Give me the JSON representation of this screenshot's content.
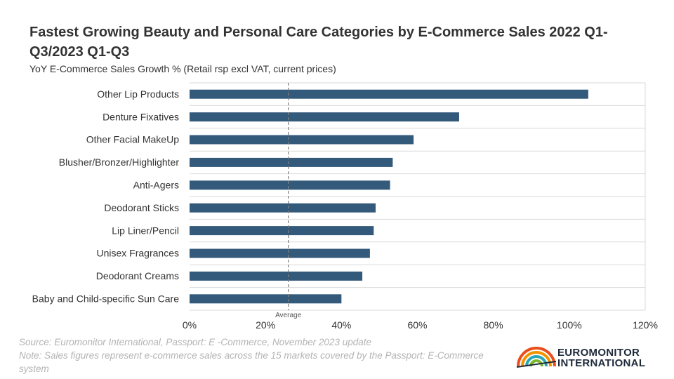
{
  "title": "Fastest Growing Beauty and Personal Care Categories by E-Commerce Sales 2022 Q1-Q3/2023 Q1-Q3",
  "subtitle": "YoY E-Commerce Sales Growth % (Retail rsp excl VAT, current prices)",
  "footer": {
    "source": "Source: Euromonitor International, Passport: E -Commerce, November 2023 update",
    "note": "Note: Sales figures represent e-commerce sales across the 15 markets covered by the Passport: E-Commerce system"
  },
  "logo": {
    "line1": "EUROMONITOR",
    "line2": "INTERNATIONAL"
  },
  "colors": {
    "bar": "#345a7b",
    "grid": "#d9d9d9",
    "average": "#7f7f7f",
    "text": "#333333"
  },
  "chart_data": {
    "type": "bar",
    "orientation": "horizontal",
    "categories": [
      "Other Lip Products",
      "Denture Fixatives",
      "Other Facial MakeUp",
      "Blusher/Bronzer/Highlighter",
      "Anti-Agers",
      "Deodorant Sticks",
      "Lip Liner/Pencil",
      "Unisex Fragrances",
      "Deodorant Creams",
      "Baby and Child-specific Sun Care"
    ],
    "values": [
      105,
      71,
      59,
      53.5,
      52.8,
      49,
      48.5,
      47.5,
      45.5,
      40
    ],
    "unit": "%",
    "xlim": [
      0,
      120
    ],
    "xticks": [
      0,
      20,
      40,
      60,
      80,
      100,
      120
    ],
    "xtick_labels": [
      "0%",
      "20%",
      "40%",
      "60%",
      "80%",
      "100%",
      "120%"
    ],
    "reference_line": {
      "value": 26,
      "label": "Average"
    },
    "grid": true
  }
}
